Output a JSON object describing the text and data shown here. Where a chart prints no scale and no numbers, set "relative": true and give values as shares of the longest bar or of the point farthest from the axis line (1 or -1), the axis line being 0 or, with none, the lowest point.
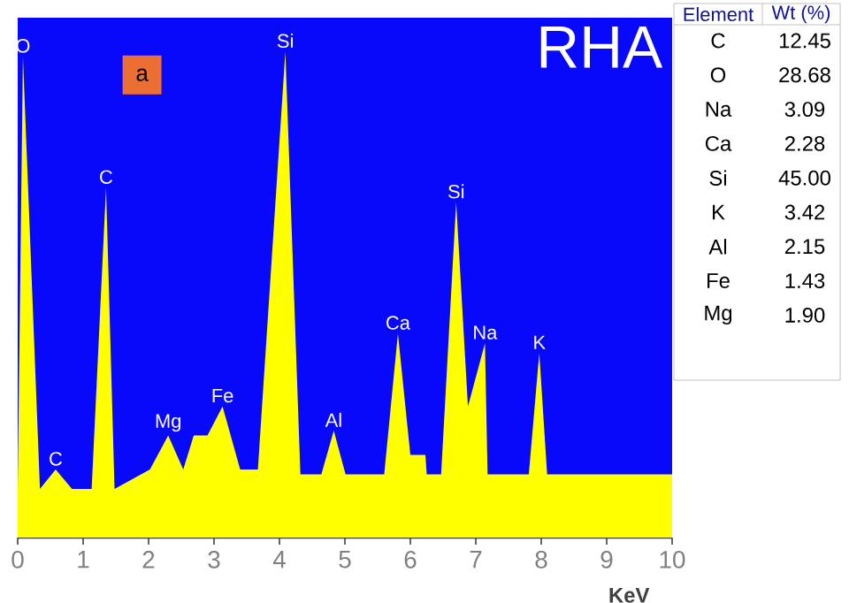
{
  "chart_data": [
    {
      "type": "area",
      "relative": true,
      "xlabel": "KeV",
      "color": "#ffff00",
      "x": [
        0,
        0.08,
        0.34,
        0.58,
        0.83,
        1.13,
        1.35,
        1.48,
        2.02,
        2.3,
        2.53,
        2.69,
        2.9,
        3.13,
        3.4,
        3.67,
        4.09,
        4.32,
        4.64,
        4.83,
        5.01,
        5.6,
        5.81,
        6.0,
        6.23,
        6.25,
        6.47,
        6.7,
        6.88,
        7.14,
        7.18,
        7.81,
        7.97,
        8.09,
        10
      ],
      "values": [
        0.1,
        0.99,
        0.1,
        0.14,
        0.1,
        0.1,
        0.72,
        0.1,
        0.14,
        0.21,
        0.14,
        0.21,
        0.21,
        0.27,
        0.14,
        0.14,
        1.0,
        0.13,
        0.13,
        0.22,
        0.13,
        0.13,
        0.42,
        0.17,
        0.17,
        0.13,
        0.13,
        0.69,
        0.27,
        0.4,
        0.13,
        0.13,
        0.38,
        0.13,
        0.13
      ],
      "xlim": [
        0,
        10
      ],
      "xticks": [
        0,
        1,
        2,
        3,
        4,
        5,
        6,
        7,
        8,
        9,
        10
      ],
      "annotations": [
        "a",
        "RHA",
        {
          "text": "O",
          "x": 0.08,
          "y": 0.99
        },
        {
          "text": "C",
          "x": 0.58,
          "y": 0.14
        },
        {
          "text": "C",
          "x": 1.35,
          "y": 0.72
        },
        {
          "text": "Mg",
          "x": 2.3,
          "y": 0.21
        },
        {
          "text": "Fe",
          "x": 3.13,
          "y": 0.27
        },
        {
          "text": "Si",
          "x": 4.09,
          "y": 1.0
        },
        {
          "text": "Al",
          "x": 4.83,
          "y": 0.22
        },
        {
          "text": "Ca",
          "x": 5.81,
          "y": 0.42
        },
        {
          "text": "Si",
          "x": 6.7,
          "y": 0.69
        },
        {
          "text": "Na",
          "x": 7.14,
          "y": 0.4
        },
        {
          "text": "K",
          "x": 7.97,
          "y": 0.38
        }
      ]
    },
    {
      "type": "other",
      "xlabel": "Element",
      "ylabel": "Wt (%)",
      "categories": [
        "C",
        "O",
        "Na",
        "Ca",
        "Si",
        "K",
        "Al",
        "Fe",
        "Mg"
      ],
      "value_labels": [
        "12.45",
        "28.68",
        "3.09",
        "2.28",
        "45.00",
        "3.42",
        "2.15",
        "1.43",
        "1.90"
      ]
    }
  ]
}
